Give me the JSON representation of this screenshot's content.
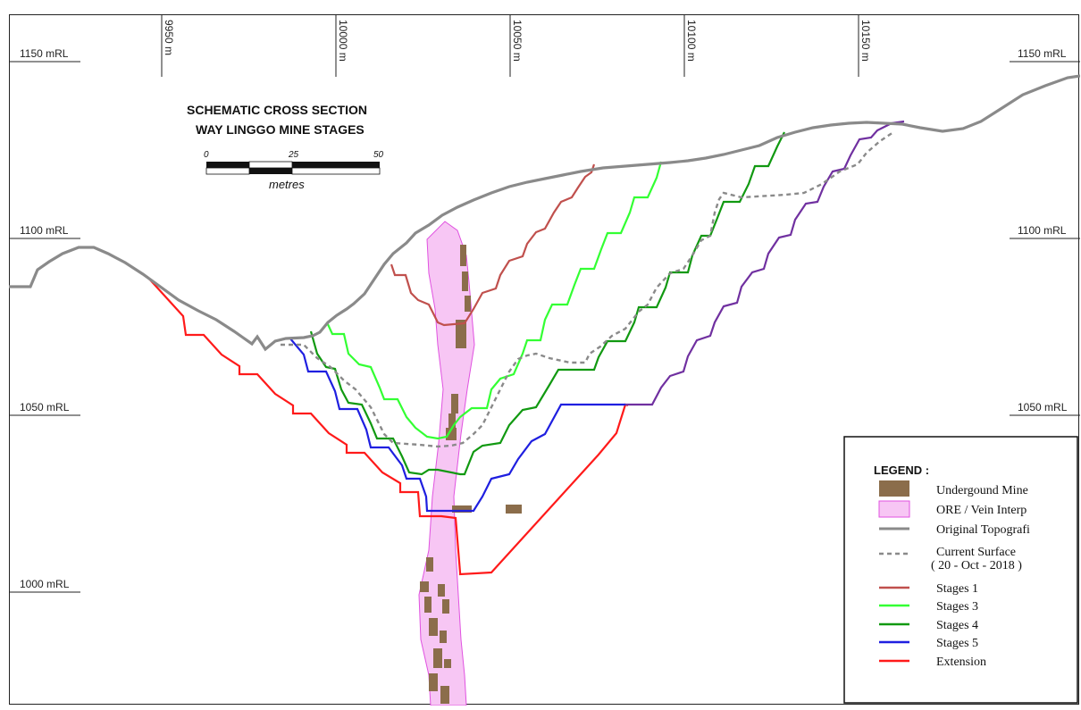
{
  "title": {
    "line1": "SCHEMATIC CROSS SECTION",
    "line2": "WAY LINGGO MINE STAGES"
  },
  "elevation_labels": [
    "1150 mRL",
    "1100 mRL",
    "1050 mRL",
    "1000 mRL"
  ],
  "easting_labels": [
    "9950 m",
    "10000 m",
    "10050 m",
    "10100 m",
    "10150 m"
  ],
  "scale_bar": {
    "ticks": [
      "0",
      "25",
      "50"
    ],
    "unit": "metres"
  },
  "legend": {
    "title": "LEGEND :",
    "items": [
      {
        "label": "Undergound Mine",
        "symbol": "fill",
        "color": "#8B6D4B"
      },
      {
        "label": "ORE / Vein Interp",
        "symbol": "fill",
        "color": "#F7C6F4"
      },
      {
        "label": "Original Topografi",
        "symbol": "line",
        "color": "#8A8A8A"
      },
      {
        "label": "Current Surface",
        "label2": "( 20 - Oct - 2018 )",
        "symbol": "dash",
        "color": "#8A8A8A"
      },
      {
        "label": "Stages 1",
        "symbol": "line",
        "color": "#C0504D"
      },
      {
        "label": "Stages 3",
        "symbol": "line",
        "color": "#33FF33"
      },
      {
        "label": "Stages 4",
        "symbol": "line",
        "color": "#119911"
      },
      {
        "label": "Stages 5",
        "symbol": "line",
        "color": "#1F1FE0"
      },
      {
        "label": "Extension",
        "symbol": "line",
        "color": "#FF1A1A"
      }
    ]
  },
  "colors": {
    "topography": "#8A8A8A",
    "stage1": "#C0504D",
    "stage3": "#33FF33",
    "stage4": "#119911",
    "stage5": "#1F1FE0",
    "extension": "#FF1A1A",
    "final_wall": "#7030A0",
    "vein_fill": "#F7C6F4",
    "vein_edge": "#E052E0",
    "ug_mine": "#8B6D4B"
  }
}
